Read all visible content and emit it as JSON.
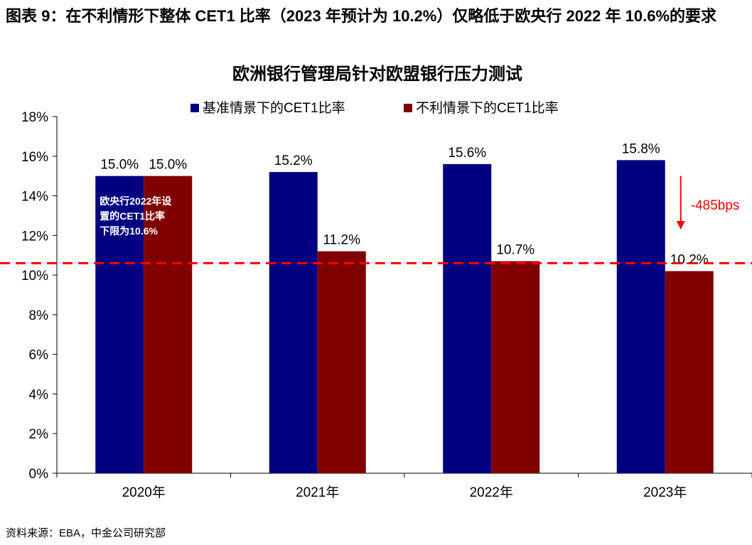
{
  "header": {
    "figure_title": "图表 9：在不利情形下整体 CET1 比率（2023 年预计为 10.2%）仅略低于欧央行 2022 年 10.6%的要求"
  },
  "chart_data": {
    "type": "bar",
    "title": "欧洲银行管理局针对欧盟银行压力测试",
    "categories": [
      "2020年",
      "2021年",
      "2022年",
      "2023年"
    ],
    "series": [
      {
        "name": "基准情景下的CET1比率",
        "values": [
          15.0,
          15.2,
          15.6,
          15.8
        ],
        "labels": [
          "15.0%",
          "15.2%",
          "15.6%",
          "15.8%"
        ],
        "color": "#000080"
      },
      {
        "name": "不利情景下的CET1比率",
        "values": [
          15.0,
          11.2,
          10.7,
          10.2
        ],
        "labels": [
          "15.0%",
          "11.2%",
          "10.7%",
          "10.2%"
        ],
        "color": "#800000"
      }
    ],
    "ylim": [
      0,
      18
    ],
    "yticks": [
      0,
      2,
      4,
      6,
      8,
      10,
      12,
      14,
      16,
      18
    ],
    "ytick_labels": [
      "0%",
      "2%",
      "4%",
      "6%",
      "8%",
      "10%",
      "12%",
      "14%",
      "16%",
      "18%"
    ],
    "xlabel": "",
    "ylabel": "",
    "legend_position": "top",
    "reference_line": {
      "value": 10.6,
      "color": "#ff0000",
      "style": "dashed"
    },
    "annotations": [
      {
        "text_lines": [
          "欧央行2022年设",
          "置的CET1比率",
          "下限为10.6%"
        ],
        "color": "#ffffff"
      },
      {
        "text": "-485bps",
        "color": "#ff0000",
        "arrow_from": 15.0,
        "arrow_to": 12.3
      }
    ],
    "grid": false
  },
  "footer": {
    "source": "资料来源：EBA，中金公司研究部"
  }
}
